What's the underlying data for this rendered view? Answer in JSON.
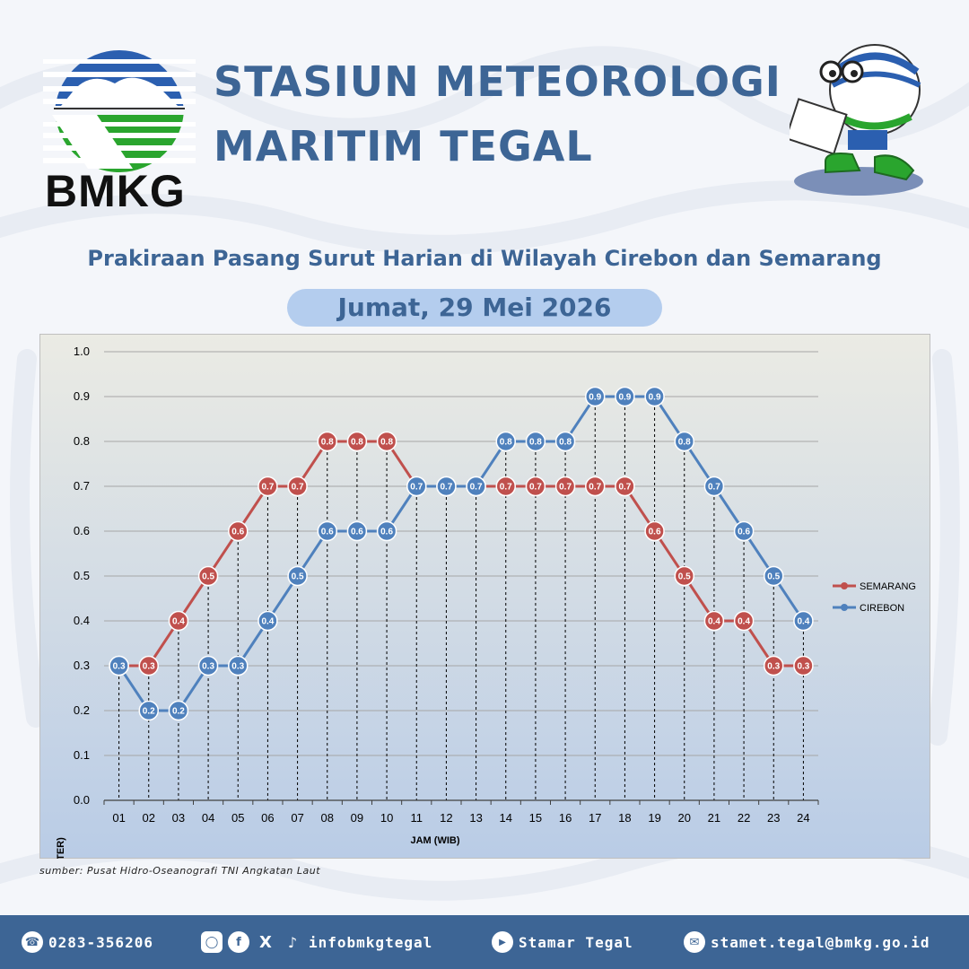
{
  "header": {
    "logo_text": "BMKG",
    "title_line_1": "STASIUN METEOROLOGI",
    "title_line_2": "MARITIM TEGAL",
    "subtitle": "Prakiraan Pasang Surut Harian di Wilayah Cirebon dan Semarang",
    "date": "Jumat, 29 Mei 2026"
  },
  "colors": {
    "title": "#3d6595",
    "semarang": "#c0504d",
    "cirebon": "#4f81bd",
    "footer": "#3d6595",
    "date_pill": "#b4cdee"
  },
  "chart_data": {
    "type": "line",
    "title": "",
    "xlabel": "JAM (WIB)",
    "ylabel": "TINGGI (METER)",
    "ylim": [
      0,
      1.0
    ],
    "yticks": [
      "0.0",
      "0.1",
      "0.2",
      "0.3",
      "0.4",
      "0.5",
      "0.6",
      "0.7",
      "0.8",
      "0.9",
      "1.0"
    ],
    "categories": [
      "01",
      "02",
      "03",
      "04",
      "05",
      "06",
      "07",
      "08",
      "09",
      "10",
      "11",
      "12",
      "13",
      "14",
      "15",
      "16",
      "17",
      "18",
      "19",
      "20",
      "21",
      "22",
      "23",
      "24"
    ],
    "series": [
      {
        "name": "SEMARANG",
        "color": "#c0504d",
        "values": [
          0.3,
          0.3,
          0.4,
          0.5,
          0.6,
          0.7,
          0.7,
          0.8,
          0.8,
          0.8,
          0.7,
          0.7,
          0.7,
          0.7,
          0.7,
          0.7,
          0.7,
          0.7,
          0.6,
          0.5,
          0.4,
          0.4,
          0.3,
          0.3
        ]
      },
      {
        "name": "CIREBON",
        "color": "#4f81bd",
        "values": [
          0.3,
          0.2,
          0.2,
          0.3,
          0.3,
          0.4,
          0.5,
          0.6,
          0.6,
          0.6,
          0.7,
          0.7,
          0.7,
          0.8,
          0.8,
          0.8,
          0.9,
          0.9,
          0.9,
          0.8,
          0.7,
          0.6,
          0.5,
          0.4
        ]
      }
    ],
    "legend_position": "right",
    "grid": true
  },
  "source": "sumber: Pusat Hidro-Oseanografi TNI Angkatan Laut",
  "footer": {
    "phone": "0283-356206",
    "social_handle": "infobmkgtegal",
    "youtube": "Stamar Tegal",
    "email": "stamet.tegal@bmkg.go.id"
  }
}
